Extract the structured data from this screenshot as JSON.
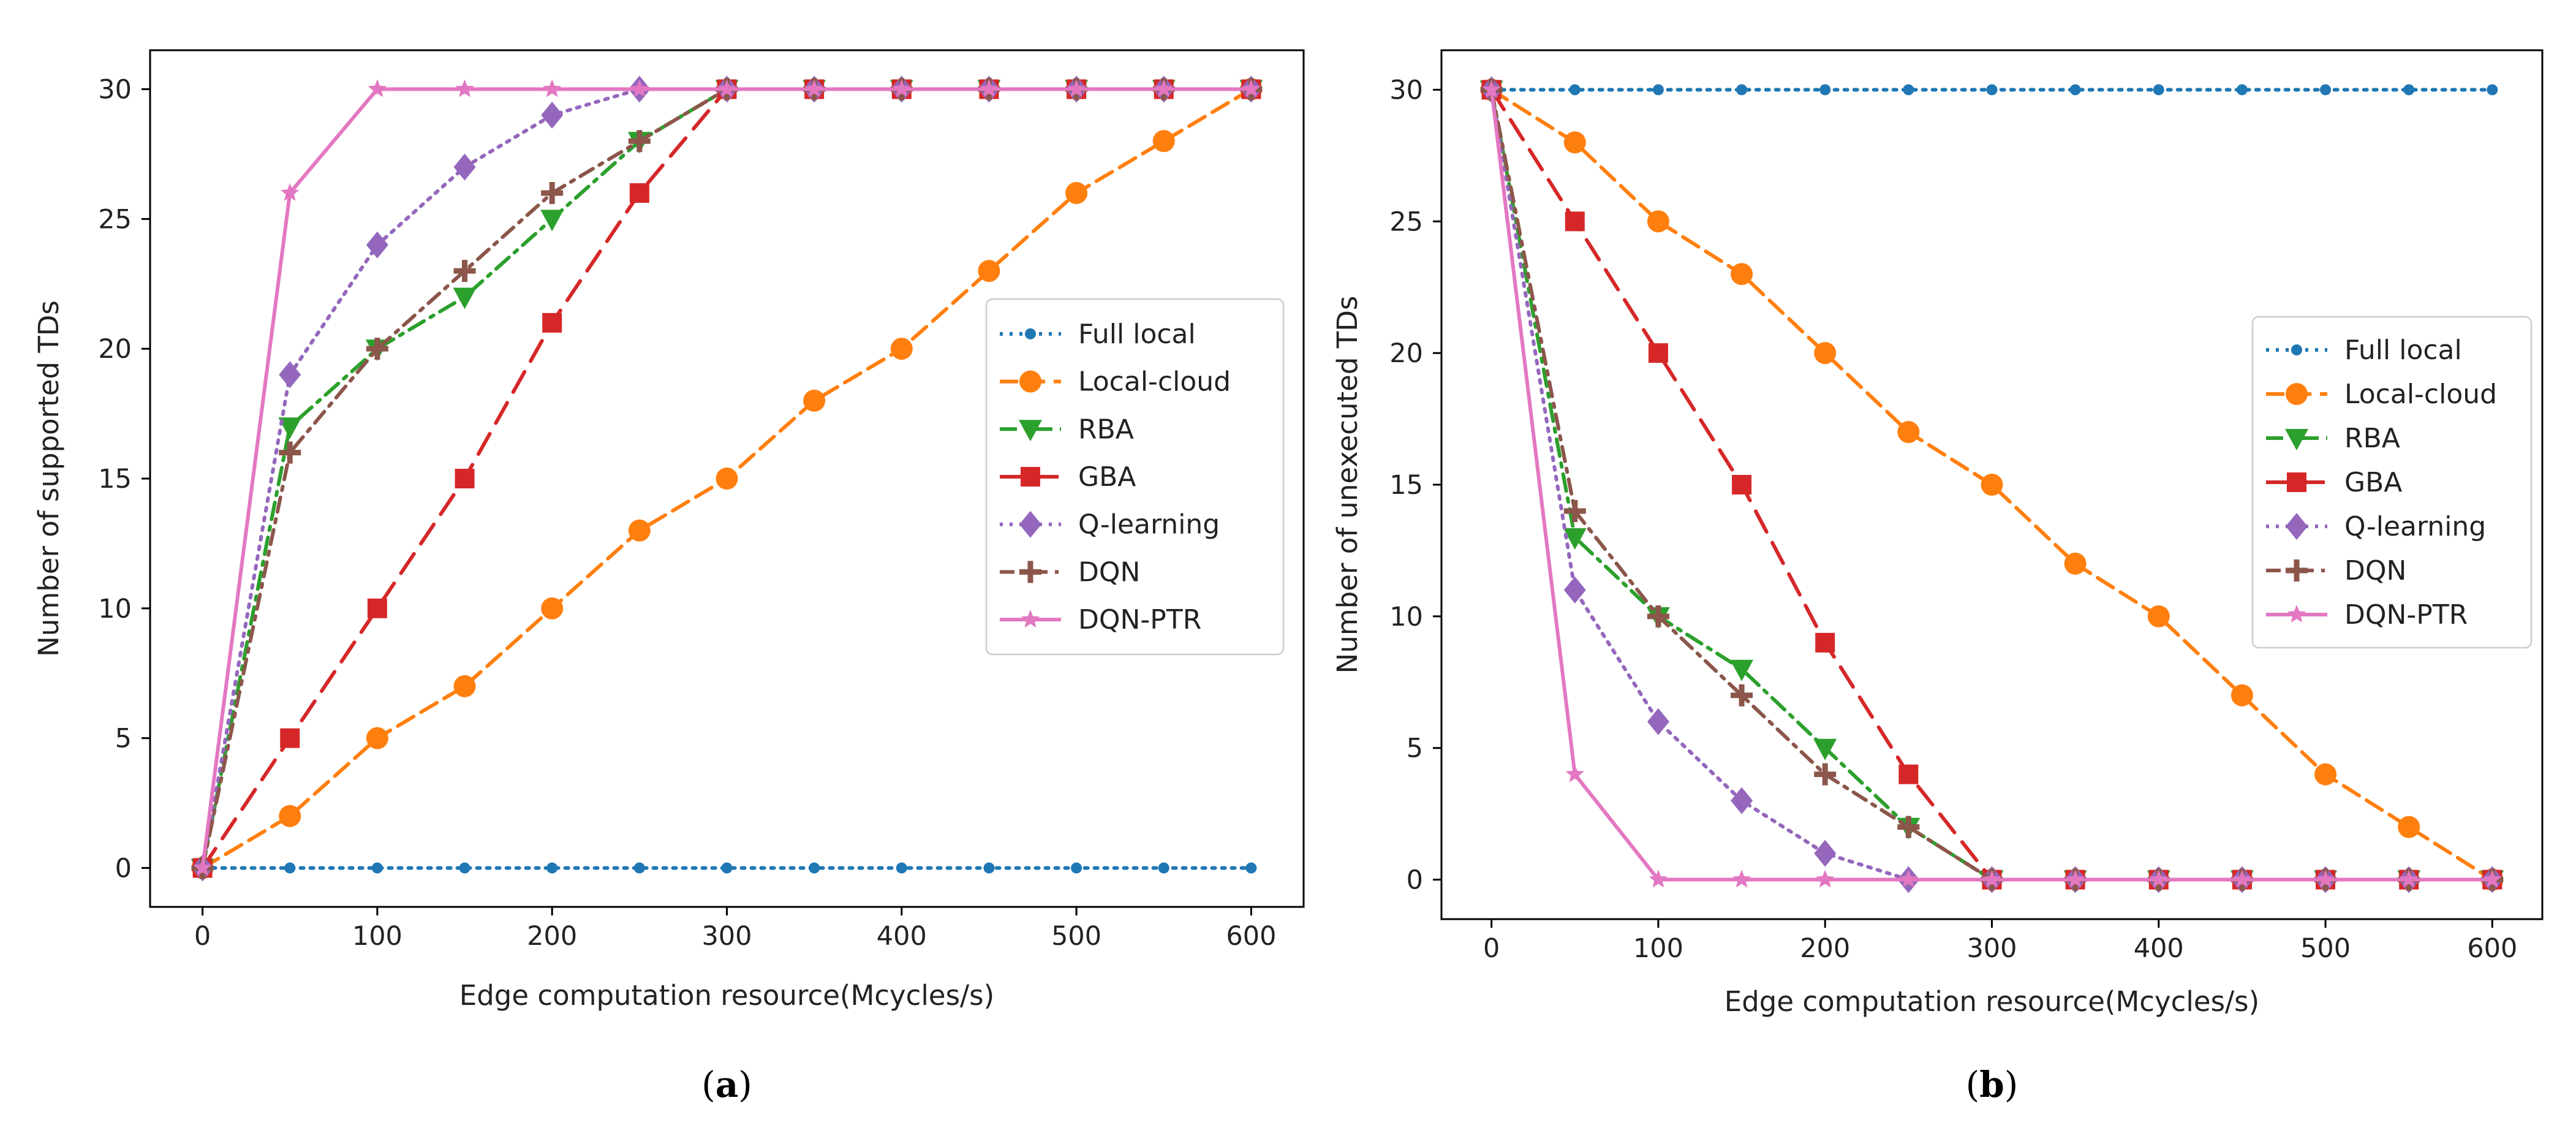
{
  "chart_data": [
    {
      "type": "line",
      "panel_label": "a",
      "xlabel": "Edge computation resource(Mcycles/s)",
      "ylabel": "Number of supported TDs",
      "xlim": [
        -30,
        630
      ],
      "ylim": [
        -1.5,
        31.5
      ],
      "xticks": [
        0,
        100,
        200,
        300,
        400,
        500,
        600
      ],
      "yticks": [
        0,
        5,
        10,
        15,
        20,
        25,
        30
      ],
      "x": [
        0,
        50,
        100,
        150,
        200,
        250,
        300,
        350,
        400,
        450,
        500,
        550,
        600
      ],
      "legend_position": "center-right",
      "series": [
        {
          "name": "Full local",
          "color": "#1f77b4",
          "dash": "dotted",
          "marker": "dot",
          "values": [
            0,
            0,
            0,
            0,
            0,
            0,
            0,
            0,
            0,
            0,
            0,
            0,
            0
          ]
        },
        {
          "name": "Local-cloud",
          "color": "#ff7f0e",
          "dash": "dashed",
          "marker": "circle",
          "values": [
            0,
            2,
            5,
            7,
            10,
            13,
            15,
            18,
            20,
            23,
            26,
            28,
            30
          ]
        },
        {
          "name": "RBA",
          "color": "#2ca02c",
          "dash": "dashdot",
          "marker": "triangle-down",
          "values": [
            0,
            17,
            20,
            22,
            25,
            28,
            30,
            30,
            30,
            30,
            30,
            30,
            30
          ]
        },
        {
          "name": "GBA",
          "color": "#d62728",
          "dash": "longdash",
          "marker": "square",
          "values": [
            0,
            5,
            10,
            15,
            21,
            26,
            30,
            30,
            30,
            30,
            30,
            30,
            30
          ]
        },
        {
          "name": "Q-learning",
          "color": "#9467bd",
          "dash": "dotted",
          "marker": "diamond",
          "values": [
            0,
            19,
            24,
            27,
            29,
            30,
            30,
            30,
            30,
            30,
            30,
            30,
            30
          ]
        },
        {
          "name": "DQN",
          "color": "#8c564b",
          "dash": "dashdot2",
          "marker": "plus",
          "values": [
            0,
            16,
            20,
            23,
            26,
            28,
            30,
            30,
            30,
            30,
            30,
            30,
            30
          ]
        },
        {
          "name": "DQN-PTR",
          "color": "#e377c2",
          "dash": "solid",
          "marker": "star",
          "values": [
            0,
            26,
            30,
            30,
            30,
            30,
            30,
            30,
            30,
            30,
            30,
            30,
            30
          ]
        }
      ]
    },
    {
      "type": "line",
      "panel_label": "b",
      "xlabel": "Edge computation resource(Mcycles/s)",
      "ylabel": "Number of unexecuted TDs",
      "xlim": [
        -30,
        630
      ],
      "ylim": [
        -1.5,
        31.5
      ],
      "xticks": [
        0,
        100,
        200,
        300,
        400,
        500,
        600
      ],
      "yticks": [
        0,
        5,
        10,
        15,
        20,
        25,
        30
      ],
      "x": [
        0,
        50,
        100,
        150,
        200,
        250,
        300,
        350,
        400,
        450,
        500,
        550,
        600
      ],
      "legend_position": "center-right",
      "series": [
        {
          "name": "Full local",
          "color": "#1f77b4",
          "dash": "dotted",
          "marker": "dot",
          "values": [
            30,
            30,
            30,
            30,
            30,
            30,
            30,
            30,
            30,
            30,
            30,
            30,
            30
          ]
        },
        {
          "name": "Local-cloud",
          "color": "#ff7f0e",
          "dash": "dashed",
          "marker": "circle",
          "values": [
            30,
            28,
            25,
            23,
            20,
            17,
            15,
            12,
            10,
            7,
            4,
            2,
            0
          ]
        },
        {
          "name": "RBA",
          "color": "#2ca02c",
          "dash": "dashdot",
          "marker": "triangle-down",
          "values": [
            30,
            13,
            10,
            8,
            5,
            2,
            0,
            0,
            0,
            0,
            0,
            0,
            0
          ]
        },
        {
          "name": "GBA",
          "color": "#d62728",
          "dash": "longdash",
          "marker": "square",
          "values": [
            30,
            25,
            20,
            15,
            9,
            4,
            0,
            0,
            0,
            0,
            0,
            0,
            0
          ]
        },
        {
          "name": "Q-learning",
          "color": "#9467bd",
          "dash": "dotted",
          "marker": "diamond",
          "values": [
            30,
            11,
            6,
            3,
            1,
            0,
            0,
            0,
            0,
            0,
            0,
            0,
            0
          ]
        },
        {
          "name": "DQN",
          "color": "#8c564b",
          "dash": "dashdot2",
          "marker": "plus",
          "values": [
            30,
            14,
            10,
            7,
            4,
            2,
            0,
            0,
            0,
            0,
            0,
            0,
            0
          ]
        },
        {
          "name": "DQN-PTR",
          "color": "#e377c2",
          "dash": "solid",
          "marker": "star",
          "values": [
            30,
            4,
            0,
            0,
            0,
            0,
            0,
            0,
            0,
            0,
            0,
            0,
            0
          ]
        }
      ]
    }
  ]
}
